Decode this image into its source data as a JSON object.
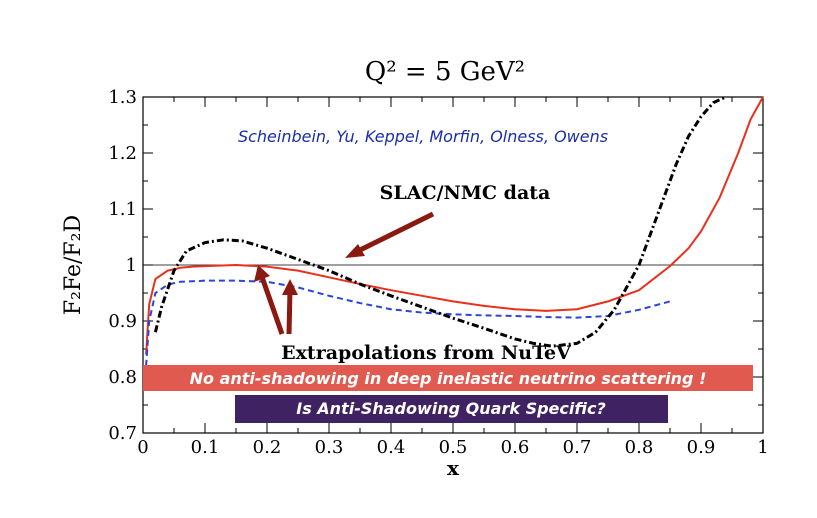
{
  "chart_data": {
    "type": "line",
    "title": "Q² = 5 GeV²",
    "xlabel": "x",
    "ylabel": "F₂Fe/F₂D",
    "xlim": [
      0,
      1
    ],
    "ylim": [
      0.7,
      1.3
    ],
    "xticks": [
      "0",
      "0.1",
      "0.2",
      "0.3",
      "0.4",
      "0.5",
      "0.6",
      "0.7",
      "0.8",
      "0.9",
      "1"
    ],
    "yticks": [
      "0.7",
      "0.8",
      "0.9",
      "1",
      "1.1",
      "1.2",
      "1.3"
    ],
    "reference_line": 1.0,
    "grid": false,
    "series": [
      {
        "color": "#e8301c",
        "style": "solid",
        "x": [
          0.005,
          0.01,
          0.02,
          0.04,
          0.06,
          0.08,
          0.1,
          0.15,
          0.2,
          0.25,
          0.3,
          0.35,
          0.4,
          0.45,
          0.5,
          0.55,
          0.6,
          0.65,
          0.7,
          0.75,
          0.8,
          0.85,
          0.88,
          0.9,
          0.93,
          0.96,
          0.98,
          1.0
        ],
        "y": [
          0.84,
          0.93,
          0.975,
          0.99,
          0.995,
          0.997,
          0.998,
          1.0,
          0.997,
          0.99,
          0.978,
          0.966,
          0.955,
          0.945,
          0.935,
          0.927,
          0.921,
          0.918,
          0.921,
          0.935,
          0.955,
          0.998,
          1.03,
          1.06,
          1.12,
          1.2,
          1.26,
          1.32
        ]
      },
      {
        "color": "#2a44e0",
        "style": "dashed",
        "x": [
          0.005,
          0.01,
          0.02,
          0.04,
          0.06,
          0.08,
          0.1,
          0.15,
          0.2,
          0.25,
          0.3,
          0.35,
          0.4,
          0.45,
          0.5,
          0.55,
          0.6,
          0.65,
          0.7,
          0.75,
          0.8,
          0.85
        ],
        "y": [
          0.82,
          0.9,
          0.95,
          0.965,
          0.97,
          0.971,
          0.972,
          0.972,
          0.97,
          0.96,
          0.945,
          0.932,
          0.921,
          0.915,
          0.912,
          0.91,
          0.909,
          0.907,
          0.906,
          0.909,
          0.92,
          0.935
        ]
      },
      {
        "color": "#000000",
        "style": "dashdot",
        "x": [
          0.02,
          0.03,
          0.05,
          0.07,
          0.1,
          0.13,
          0.16,
          0.2,
          0.25,
          0.3,
          0.35,
          0.4,
          0.45,
          0.5,
          0.55,
          0.6,
          0.63,
          0.66,
          0.7,
          0.73,
          0.76,
          0.78,
          0.8,
          0.82,
          0.84,
          0.86,
          0.88,
          0.9,
          0.92,
          0.94
        ],
        "y": [
          0.88,
          0.925,
          0.99,
          1.025,
          1.04,
          1.045,
          1.043,
          1.03,
          1.01,
          0.99,
          0.966,
          0.945,
          0.925,
          0.905,
          0.887,
          0.868,
          0.86,
          0.855,
          0.86,
          0.88,
          0.92,
          0.96,
          1.0,
          1.06,
          1.12,
          1.18,
          1.23,
          1.265,
          1.29,
          1.31
        ]
      }
    ],
    "annotations": {
      "authors": "Scheinbein, Yu, Keppel, Morfin, Olness, Owens",
      "slac": "SLAC/NMC data",
      "extrapolations": "Extrapolations from  NuTeV",
      "banner1": "No anti-shadowing in deep inelastic neutrino scattering !",
      "banner2": "Is Anti-Shadowing Quark Specific?"
    },
    "colors": {
      "banner1_bg": "#e05a50",
      "banner2_bg": "#3f2262",
      "arrow": "#8a1a10",
      "authors_text": "#1a2ea8"
    }
  }
}
